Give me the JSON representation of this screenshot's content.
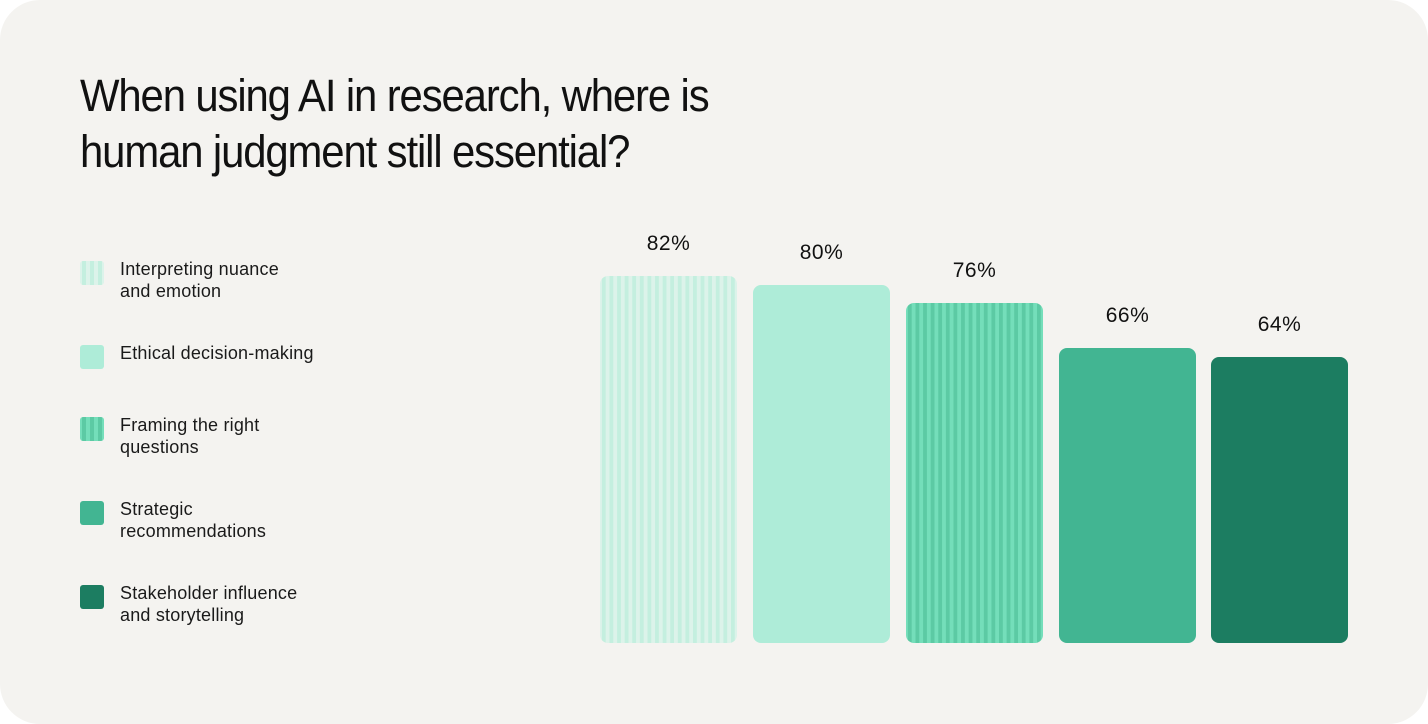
{
  "title": "When using AI in research, where is human judgment still essential?",
  "title_lines": [
    "When using AI in research, where is",
    "human judgment still essential?"
  ],
  "legend": [
    {
      "label_lines": [
        "Interpreting nuance",
        "and emotion"
      ],
      "color": "#dcf3ea",
      "dot_color": "#c4efdf",
      "pattern": "dotted"
    },
    {
      "label_lines": [
        "Ethical decision-making"
      ],
      "color": "#aeecd8",
      "pattern": "solid"
    },
    {
      "label_lines": [
        "Framing the right",
        "questions"
      ],
      "color": "#74deba",
      "dot_color": "#5ccaa4",
      "pattern": "dotted"
    },
    {
      "label_lines": [
        "Strategic",
        "recommendations"
      ],
      "color": "#42b592",
      "pattern": "solid"
    },
    {
      "label_lines": [
        "Stakeholder influence",
        "and storytelling"
      ],
      "color": "#1c7d61",
      "pattern": "solid"
    }
  ],
  "bars": [
    {
      "value_label": "82%",
      "value": 82
    },
    {
      "value_label": "80%",
      "value": 80
    },
    {
      "value_label": "76%",
      "value": 76
    },
    {
      "value_label": "66%",
      "value": 66
    },
    {
      "value_label": "64%",
      "value": 64
    }
  ],
  "chart_data": {
    "type": "bar",
    "title": "When using AI in research, where is human judgment still essential?",
    "categories": [
      "Interpreting nuance and emotion",
      "Ethical decision-making",
      "Framing the right questions",
      "Strategic recommendations",
      "Stakeholder influence and storytelling"
    ],
    "values": [
      82,
      80,
      76,
      66,
      64
    ],
    "value_labels": [
      "82%",
      "80%",
      "76%",
      "66%",
      "64%"
    ],
    "colors": [
      "#dcf3ea",
      "#aeecd8",
      "#74deba",
      "#42b592",
      "#1c7d61"
    ],
    "xlabel": "",
    "ylabel": "",
    "unit": "%",
    "grid": false,
    "axes_visible": false,
    "legend_position": "left"
  }
}
